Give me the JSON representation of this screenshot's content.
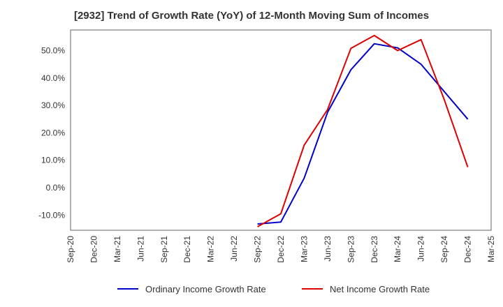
{
  "chart_data": {
    "type": "line",
    "title": "[2932]  Trend of Growth Rate (YoY) of 12-Month Moving Sum of Incomes",
    "xlabel": "",
    "ylabel": "",
    "ylim": [
      -15.5,
      57.5
    ],
    "y_ticks": [
      "-10.0%",
      "0.0%",
      "10.0%",
      "20.0%",
      "30.0%",
      "40.0%",
      "50.0%"
    ],
    "y_tick_values": [
      -10,
      0,
      10,
      20,
      30,
      40,
      50
    ],
    "categories": [
      "Sep-20",
      "Dec-20",
      "Mar-21",
      "Jun-21",
      "Sep-21",
      "Dec-21",
      "Mar-22",
      "Jun-22",
      "Sep-22",
      "Dec-22",
      "Mar-23",
      "Jun-23",
      "Sep-23",
      "Dec-23",
      "Mar-24",
      "Jun-24",
      "Sep-24",
      "Dec-24",
      "Mar-25"
    ],
    "grid": true,
    "legend_position": "bottom",
    "series": [
      {
        "name": "Ordinary Income Growth Rate",
        "color": "#0000cc",
        "values": [
          null,
          null,
          null,
          null,
          null,
          null,
          null,
          null,
          -13.2,
          -12.5,
          3.5,
          27.5,
          43.0,
          52.5,
          51.0,
          45.0,
          35.0,
          25.0,
          null
        ]
      },
      {
        "name": "Net Income Growth Rate",
        "color": "#dd0000",
        "values": [
          null,
          null,
          null,
          null,
          null,
          null,
          null,
          null,
          -14.2,
          -9.5,
          15.5,
          28.5,
          50.8,
          55.5,
          50.0,
          54.0,
          32.0,
          7.5,
          null
        ]
      }
    ]
  }
}
